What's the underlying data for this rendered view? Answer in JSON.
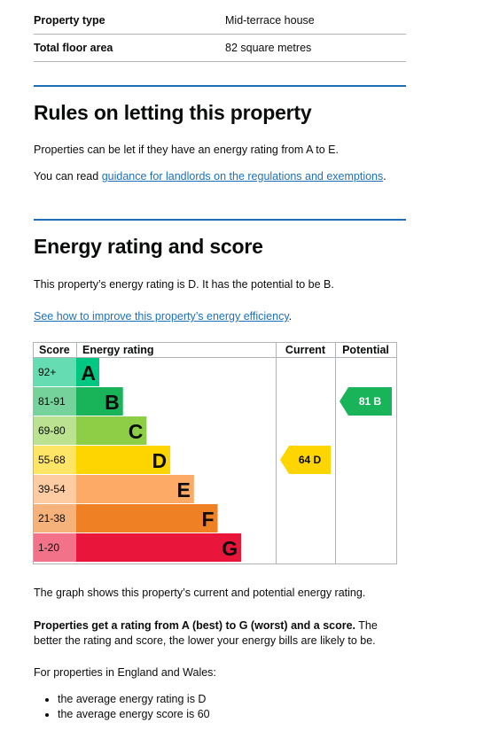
{
  "summary": [
    {
      "label": "Property type",
      "value": "Mid-terrace house"
    },
    {
      "label": "Total floor area",
      "value": "82 square metres"
    }
  ],
  "letting": {
    "heading": "Rules on letting this property",
    "text1": "Properties can be let if they have an energy rating from A to E.",
    "text2_before": "You can read ",
    "link": "guidance for landlords on the regulations and exemptions",
    "text2_after": "."
  },
  "energy": {
    "heading": "Energy rating and score",
    "text1": "This property’s energy rating is D. It has the potential to be B.",
    "link": "See how to improve this property’s energy efficiency",
    "link_after": "."
  },
  "chart_data": {
    "type": "bar",
    "columns": [
      "Score",
      "Energy rating",
      "Current",
      "Potential"
    ],
    "bands": [
      {
        "letter": "A",
        "range": "92+",
        "color": "#00c781",
        "range_bg": "#66dcb3"
      },
      {
        "letter": "B",
        "range": "81-91",
        "color": "#19b459",
        "range_bg": "#75d29b"
      },
      {
        "letter": "C",
        "range": "69-80",
        "color": "#8dce46",
        "range_bg": "#bbe290"
      },
      {
        "letter": "D",
        "range": "55-68",
        "color": "#ffd500",
        "range_bg": "#ffe566"
      },
      {
        "letter": "E",
        "range": "39-54",
        "color": "#fcaa65",
        "range_bg": "#fdcca3"
      },
      {
        "letter": "F",
        "range": "21-38",
        "color": "#ef8023",
        "range_bg": "#f5b37b"
      },
      {
        "letter": "G",
        "range": "1-20",
        "color": "#e9153b",
        "range_bg": "#f27389"
      }
    ],
    "current": {
      "score": 64,
      "band": "D",
      "label": "64  D"
    },
    "potential": {
      "score": 81,
      "band": "B",
      "label": "81  B"
    }
  },
  "after": {
    "graph_note": "The graph shows this property’s current and potential energy rating.",
    "bold": "Properties get a rating from A (best) to G (worst) and a score.",
    "rest": " The better the rating and score, the lower your energy bills are likely to be.",
    "england": "For properties in England and Wales:",
    "bullets": [
      "the average energy rating is D",
      "the average energy score is 60"
    ]
  }
}
